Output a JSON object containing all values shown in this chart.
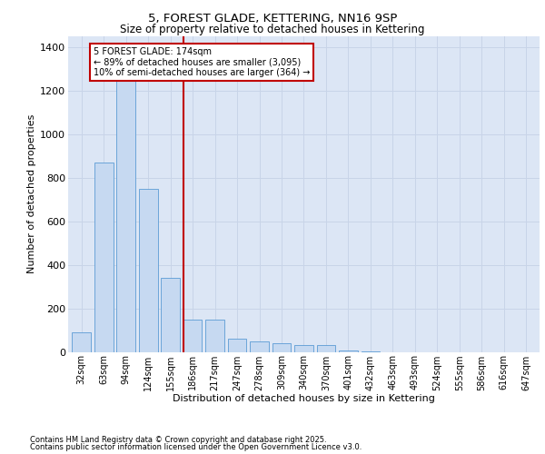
{
  "title_line1": "5, FOREST GLADE, KETTERING, NN16 9SP",
  "title_line2": "Size of property relative to detached houses in Kettering",
  "xlabel": "Distribution of detached houses by size in Kettering",
  "ylabel": "Number of detached properties",
  "categories": [
    "32sqm",
    "63sqm",
    "94sqm",
    "124sqm",
    "155sqm",
    "186sqm",
    "217sqm",
    "247sqm",
    "278sqm",
    "309sqm",
    "340sqm",
    "370sqm",
    "401sqm",
    "432sqm",
    "463sqm",
    "493sqm",
    "524sqm",
    "555sqm",
    "586sqm",
    "616sqm",
    "647sqm"
  ],
  "bar_heights": [
    90,
    870,
    1270,
    750,
    340,
    150,
    150,
    60,
    50,
    40,
    30,
    30,
    5,
    2,
    0,
    0,
    0,
    0,
    0,
    0,
    0
  ],
  "bar_color": "#c6d9f1",
  "bar_edge_color": "#5b9bd5",
  "grid_color": "#c8d4e8",
  "background_color": "#dce6f5",
  "vline_color": "#c00000",
  "vline_bar_index": 5,
  "annotation_text": "5 FOREST GLADE: 174sqm\n← 89% of detached houses are smaller (3,095)\n10% of semi-detached houses are larger (364) →",
  "annotation_box_color": "#c00000",
  "ylim": [
    0,
    1450
  ],
  "yticks": [
    0,
    200,
    400,
    600,
    800,
    1000,
    1200,
    1400
  ],
  "footnote1": "Contains HM Land Registry data © Crown copyright and database right 2025.",
  "footnote2": "Contains public sector information licensed under the Open Government Licence v3.0."
}
